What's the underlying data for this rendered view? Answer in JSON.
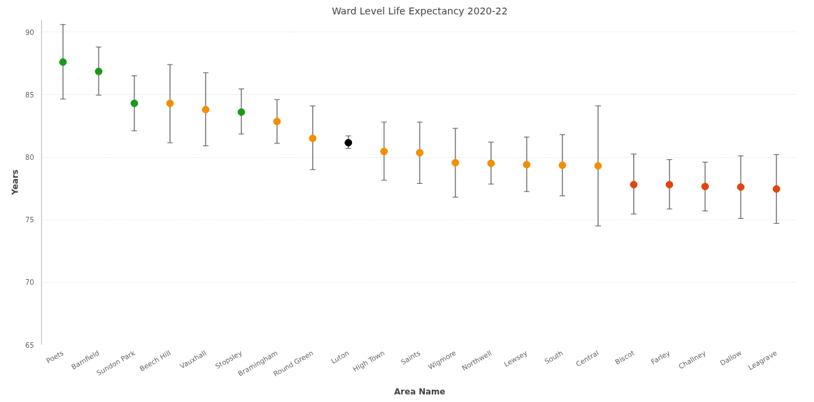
{
  "chart_data": {
    "type": "scatter",
    "title": "Ward Level Life Expectancy 2020-22",
    "xlabel": "Area Name",
    "ylabel": "Years",
    "categories": [
      "Poets",
      "Barnfield",
      "Sundon Park",
      "Beech Hill",
      "Vauxhall",
      "Stopsley",
      "Bramingham",
      "Round Green",
      "Luton",
      "High Town",
      "Saints",
      "Wigmore",
      "Northwell",
      "Lewsey",
      "South",
      "Central",
      "Biscot",
      "Farley",
      "Challney",
      "Dallow",
      "Leagrave"
    ],
    "values": [
      87.6,
      86.85,
      84.3,
      84.3,
      83.8,
      83.6,
      82.85,
      81.5,
      81.15,
      80.45,
      80.35,
      79.55,
      79.5,
      79.4,
      79.35,
      79.3,
      77.8,
      77.8,
      77.65,
      77.6,
      77.45
    ],
    "errors": [
      [
        84.65,
        90.6
      ],
      [
        84.95,
        88.8
      ],
      [
        82.1,
        86.5
      ],
      [
        81.15,
        87.4
      ],
      [
        80.9,
        86.75
      ],
      [
        81.85,
        85.45
      ],
      [
        81.1,
        84.6
      ],
      [
        79.0,
        84.1
      ],
      [
        80.7,
        81.7
      ],
      [
        78.15,
        82.8
      ],
      [
        77.9,
        82.8
      ],
      [
        76.8,
        82.3
      ],
      [
        77.85,
        81.2
      ],
      [
        77.25,
        81.6
      ],
      [
        76.9,
        81.8
      ],
      [
        74.5,
        84.1
      ],
      [
        75.45,
        80.25
      ],
      [
        75.85,
        79.8
      ],
      [
        75.7,
        79.6
      ],
      [
        75.1,
        80.1
      ],
      [
        74.7,
        80.2
      ]
    ],
    "colors": [
      "#1a9a1a",
      "#1a9a1a",
      "#1a9a1a",
      "#f28e00",
      "#f28e00",
      "#1a9a1a",
      "#f28e00",
      "#f28e00",
      "#000000",
      "#f28e00",
      "#f28e00",
      "#f28e00",
      "#f28e00",
      "#f28e00",
      "#f28e00",
      "#f28e00",
      "#e0450f",
      "#e0450f",
      "#e0450f",
      "#e0450f",
      "#e0450f"
    ],
    "ylim": [
      65,
      91
    ],
    "yticks": [
      65,
      70,
      75,
      80,
      85,
      90
    ],
    "grid": "y",
    "marker": "circle"
  }
}
